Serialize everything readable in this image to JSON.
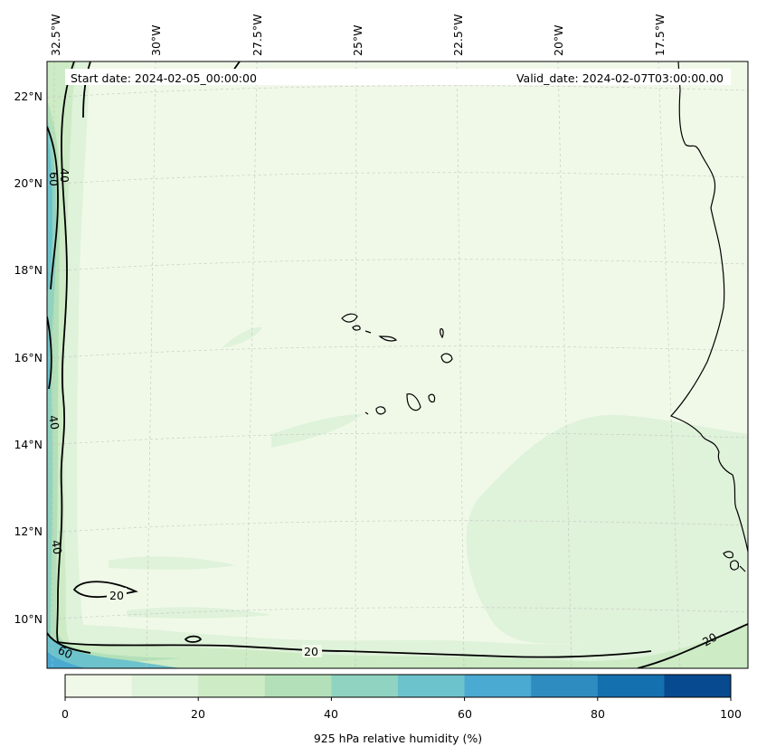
{
  "header": {
    "start_date": "Start date: 2024-02-05_00:00:00",
    "valid_date": "Valid_date: 2024-02-07T03:00:00.00"
  },
  "map": {
    "longitude_labels": [
      "32.5°W",
      "30°W",
      "27.5°W",
      "25°W",
      "22.5°W",
      "20°W",
      "17.5°W"
    ],
    "latitude_labels": [
      "22°N",
      "20°N",
      "18°N",
      "16°N",
      "14°N",
      "12°N",
      "10°N"
    ],
    "contour_labels": [
      "60",
      "40",
      "40",
      "40",
      "20",
      "20",
      "60",
      "20"
    ]
  },
  "colorbar": {
    "tick_labels": [
      "0",
      "20",
      "40",
      "60",
      "80",
      "100"
    ],
    "label": "925 hPa relative humidity (%)",
    "levels": [
      0,
      10,
      20,
      30,
      40,
      50,
      60,
      70,
      80,
      90,
      100
    ],
    "colors": [
      "#f0f9e8",
      "#dff2da",
      "#cdebc5",
      "#b3e0b8",
      "#8fd3c0",
      "#6cc3cc",
      "#4aaad1",
      "#2e8cc0",
      "#1570af",
      "#084a8f"
    ]
  }
}
